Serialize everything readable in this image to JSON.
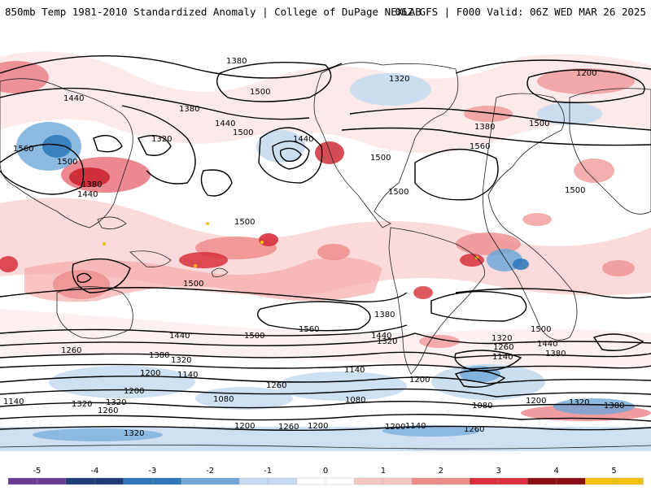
{
  "header": {
    "left_title": "850mb Temp 1981-2010 Standardized Anomaly | College of DuPage NEXLAB",
    "right_title": "06Z GFS | F000 Valid: 06Z WED MAR 26 2025"
  },
  "map": {
    "contour_labels": [
      "1380",
      "1440",
      "1500",
      "1200",
      "1320",
      "1440",
      "1560",
      "1500",
      "1380",
      "1320",
      "1440",
      "1380",
      "1500",
      "1500",
      "1560",
      "1500",
      "1500",
      "1500",
      "1440",
      "1380",
      "1500",
      "1440",
      "1380",
      "1320",
      "1260",
      "1200",
      "1140",
      "1080",
      "1140",
      "1260",
      "1320",
      "1200",
      "1320",
      "1080",
      "1140",
      "1200",
      "1260",
      "1320",
      "1380",
      "1440",
      "1500",
      "1560",
      "1500",
      "1500",
      "1440",
      "1380",
      "1320",
      "1260",
      "1200",
      "1140",
      "1200",
      "1380",
      "1320",
      "1260",
      "1200",
      "1140",
      "1260",
      "1320",
      "1080",
      "1200"
    ]
  },
  "colorbar": {
    "ticks": [
      "-5",
      "-4",
      "-3",
      "-2",
      "-1",
      "0",
      "1",
      "2",
      "3",
      "4",
      "5"
    ],
    "colors": {
      "neg5": "#6a3d9a",
      "neg4": "#1f3b78",
      "neg3": "#2c77b8",
      "neg2": "#6fa8d8",
      "neg1": "#c6dbef",
      "zero": "#ffffff",
      "pos1": "#f7c6c6",
      "pos2": "#ee8c8c",
      "pos3": "#d7303a",
      "pos4": "#8b0e14",
      "pos5": "#f4c20d"
    }
  }
}
